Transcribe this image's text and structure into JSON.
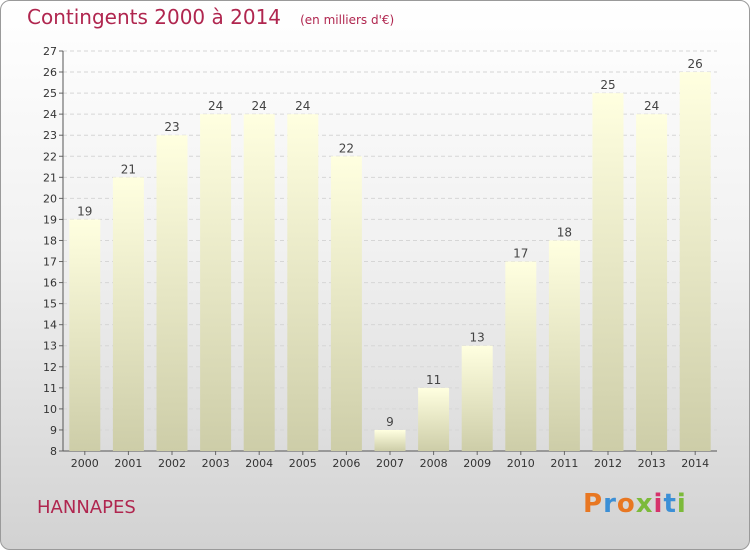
{
  "title": "Contingents 2000 à 2014",
  "unit_note": "(en milliers d'€)",
  "commune": "HANNAPES",
  "logo": "Proxiti",
  "colors": {
    "title": "#b0264f",
    "bar_top": "#ffffe0",
    "bar_bottom": "#cdcda8",
    "logo": [
      "#e87722",
      "#3b8fd6",
      "#e87722",
      "#7cba3a",
      "#d6326b",
      "#3b8fd6",
      "#7cba3a"
    ]
  },
  "chart_data": {
    "type": "bar",
    "categories": [
      "2000",
      "2001",
      "2002",
      "2003",
      "2004",
      "2005",
      "2006",
      "2007",
      "2008",
      "2009",
      "2010",
      "2011",
      "2012",
      "2013",
      "2014"
    ],
    "values": [
      19,
      21,
      23,
      24,
      24,
      24,
      22,
      9,
      11,
      13,
      17,
      18,
      25,
      24,
      26
    ],
    "ylim": [
      8,
      27
    ],
    "yticks": [
      8,
      9,
      10,
      11,
      12,
      13,
      14,
      15,
      16,
      17,
      18,
      19,
      20,
      21,
      22,
      23,
      24,
      25,
      26,
      27
    ],
    "grid": true,
    "data_labels": true
  }
}
